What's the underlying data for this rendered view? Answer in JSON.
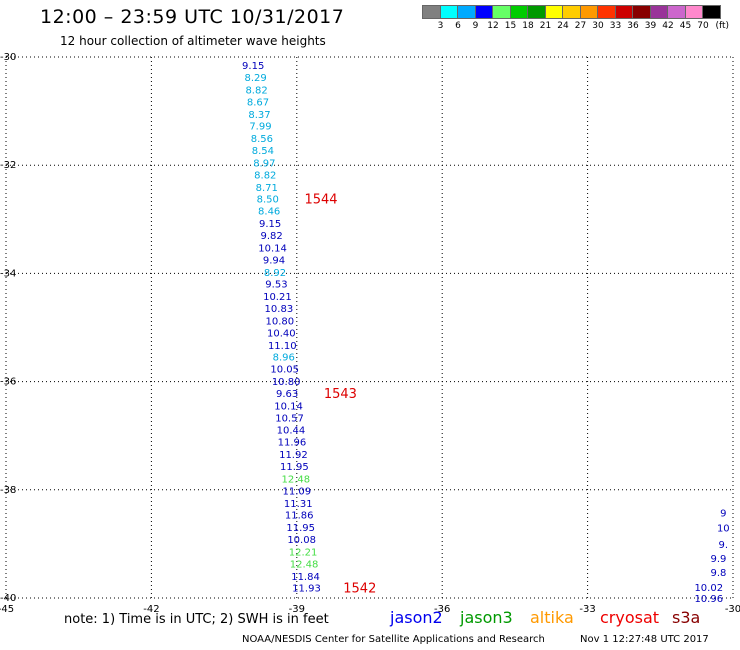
{
  "header": {
    "title": "12:00 – 23:59 UTC 10/31/2017",
    "subtitle": "12 hour collection of altimeter wave heights"
  },
  "colorbar": {
    "labels": [
      "3",
      "6",
      "9",
      "12",
      "15",
      "18",
      "21",
      "24",
      "27",
      "30",
      "33",
      "36",
      "39",
      "42",
      "45",
      "70"
    ],
    "unit": "(ft)",
    "colors": [
      "#808080",
      "#00ffff",
      "#00aaff",
      "#0000ff",
      "#66ff66",
      "#00cc00",
      "#009900",
      "#ffff00",
      "#ffcc00",
      "#ff9900",
      "#ff3300",
      "#cc0000",
      "#880000",
      "#993399",
      "#cc66cc",
      "#ff88cc",
      "#000000"
    ]
  },
  "footer": {
    "note": "note:  1) Time is in UTC;  2) SWH is in feet",
    "credit": "NOAA/NESDIS Center for Satellite Applications and Research",
    "timestamp": "Nov  1 12:27:48 UTC 2017"
  },
  "legend": [
    {
      "name": "jason2",
      "color": "#0000ee"
    },
    {
      "name": "jason3",
      "color": "#009900"
    },
    {
      "name": "altika",
      "color": "#ff9900"
    },
    {
      "name": "cryosat",
      "color": "#ee0000"
    },
    {
      "name": "s3a",
      "color": "#880000"
    }
  ],
  "chart_data": {
    "type": "scatter",
    "title": "12:00 – 23:59 UTC 10/31/2017",
    "subtitle": "12 hour collection of altimeter wave heights",
    "xlim": [
      -45,
      -30
    ],
    "ylim": [
      -40,
      -30
    ],
    "x_ticks": [
      "-45",
      "-42",
      "-39",
      "-36",
      "-33",
      "-30"
    ],
    "y_ticks": [
      "-30",
      "-32",
      "-34",
      "-36",
      "-38",
      "-40"
    ],
    "grid": true,
    "colors": {
      "cyan": "#00aadd",
      "blue": "#0000bb",
      "green": "#44dd44",
      "red": "#dd0000"
    },
    "points": [
      {
        "x": -39.9,
        "y": -30.15,
        "label": "9.15",
        "color": "blue"
      },
      {
        "x": -39.85,
        "y": -30.37,
        "label": "8.29",
        "color": "cyan"
      },
      {
        "x": -39.83,
        "y": -30.6,
        "label": "8.82",
        "color": "cyan"
      },
      {
        "x": -39.8,
        "y": -30.82,
        "label": "8.67",
        "color": "cyan"
      },
      {
        "x": -39.77,
        "y": -31.05,
        "label": "8.37",
        "color": "cyan"
      },
      {
        "x": -39.75,
        "y": -31.27,
        "label": "7.99",
        "color": "cyan"
      },
      {
        "x": -39.72,
        "y": -31.5,
        "label": "8.56",
        "color": "cyan"
      },
      {
        "x": -39.7,
        "y": -31.72,
        "label": "8.54",
        "color": "cyan"
      },
      {
        "x": -39.67,
        "y": -31.95,
        "label": "8.97",
        "color": "cyan"
      },
      {
        "x": -39.65,
        "y": -32.17,
        "label": "8.82",
        "color": "cyan"
      },
      {
        "x": -39.62,
        "y": -32.4,
        "label": "8.71",
        "color": "cyan"
      },
      {
        "x": -39.6,
        "y": -32.62,
        "label": "8.50",
        "color": "cyan"
      },
      {
        "x": -39.57,
        "y": -32.84,
        "label": "8.46",
        "color": "cyan"
      },
      {
        "x": -39.55,
        "y": -33.07,
        "label": "9.15",
        "color": "blue"
      },
      {
        "x": -39.52,
        "y": -33.29,
        "label": "9.82",
        "color": "blue"
      },
      {
        "x": -39.5,
        "y": -33.52,
        "label": "10.14",
        "color": "blue"
      },
      {
        "x": -39.47,
        "y": -33.74,
        "label": "9.94",
        "color": "blue"
      },
      {
        "x": -39.45,
        "y": -33.97,
        "label": "8.92",
        "color": "cyan"
      },
      {
        "x": -39.42,
        "y": -34.19,
        "label": "9.53",
        "color": "blue"
      },
      {
        "x": -39.4,
        "y": -34.42,
        "label": "10.21",
        "color": "blue"
      },
      {
        "x": -39.37,
        "y": -34.64,
        "label": "10.83",
        "color": "blue"
      },
      {
        "x": -39.35,
        "y": -34.87,
        "label": "10.80",
        "color": "blue"
      },
      {
        "x": -39.32,
        "y": -35.09,
        "label": "10.40",
        "color": "blue"
      },
      {
        "x": -39.3,
        "y": -35.32,
        "label": "11.10",
        "color": "blue"
      },
      {
        "x": -39.27,
        "y": -35.54,
        "label": "8.96",
        "color": "cyan"
      },
      {
        "x": -39.25,
        "y": -35.76,
        "label": "10.05",
        "color": "blue"
      },
      {
        "x": -39.22,
        "y": -35.99,
        "label": "10.80",
        "color": "blue"
      },
      {
        "x": -39.2,
        "y": -36.21,
        "label": "9.63",
        "color": "blue"
      },
      {
        "x": -39.17,
        "y": -36.44,
        "label": "10.14",
        "color": "blue"
      },
      {
        "x": -39.15,
        "y": -36.66,
        "label": "10.57",
        "color": "blue"
      },
      {
        "x": -39.12,
        "y": -36.89,
        "label": "10.44",
        "color": "blue"
      },
      {
        "x": -39.1,
        "y": -37.11,
        "label": "11.96",
        "color": "blue"
      },
      {
        "x": -39.07,
        "y": -37.34,
        "label": "11.92",
        "color": "blue"
      },
      {
        "x": -39.05,
        "y": -37.56,
        "label": "11.95",
        "color": "blue"
      },
      {
        "x": -39.02,
        "y": -37.79,
        "label": "12.48",
        "color": "green"
      },
      {
        "x": -39.0,
        "y": -38.01,
        "label": "11.09",
        "color": "blue"
      },
      {
        "x": -38.97,
        "y": -38.24,
        "label": "11.31",
        "color": "blue"
      },
      {
        "x": -38.95,
        "y": -38.46,
        "label": "11.86",
        "color": "blue"
      },
      {
        "x": -38.92,
        "y": -38.69,
        "label": "11.95",
        "color": "blue"
      },
      {
        "x": -38.9,
        "y": -38.91,
        "label": "10.08",
        "color": "blue"
      },
      {
        "x": -38.87,
        "y": -39.14,
        "label": "12.21",
        "color": "green"
      },
      {
        "x": -38.85,
        "y": -39.36,
        "label": "12.48",
        "color": "green"
      },
      {
        "x": -38.82,
        "y": -39.59,
        "label": "11.84",
        "color": "blue"
      },
      {
        "x": -38.8,
        "y": -39.81,
        "label": "11.93",
        "color": "blue"
      },
      {
        "x": -30.2,
        "y": -38.42,
        "label": "9",
        "color": "blue"
      },
      {
        "x": -30.2,
        "y": -38.7,
        "label": "10",
        "color": "blue"
      },
      {
        "x": -30.2,
        "y": -39.0,
        "label": "9.",
        "color": "blue"
      },
      {
        "x": -30.3,
        "y": -39.26,
        "label": "9.9",
        "color": "blue"
      },
      {
        "x": -30.3,
        "y": -39.52,
        "label": "9.8",
        "color": "blue"
      },
      {
        "x": -30.5,
        "y": -39.8,
        "label": "10.02",
        "color": "blue"
      },
      {
        "x": -30.5,
        "y": -40.0,
        "label": "10.96",
        "color": "blue"
      }
    ],
    "time_labels": [
      {
        "x": -38.5,
        "y": -32.62,
        "label": "1544"
      },
      {
        "x": -38.1,
        "y": -36.21,
        "label": "1543"
      },
      {
        "x": -37.7,
        "y": -39.81,
        "label": "1542"
      }
    ]
  }
}
